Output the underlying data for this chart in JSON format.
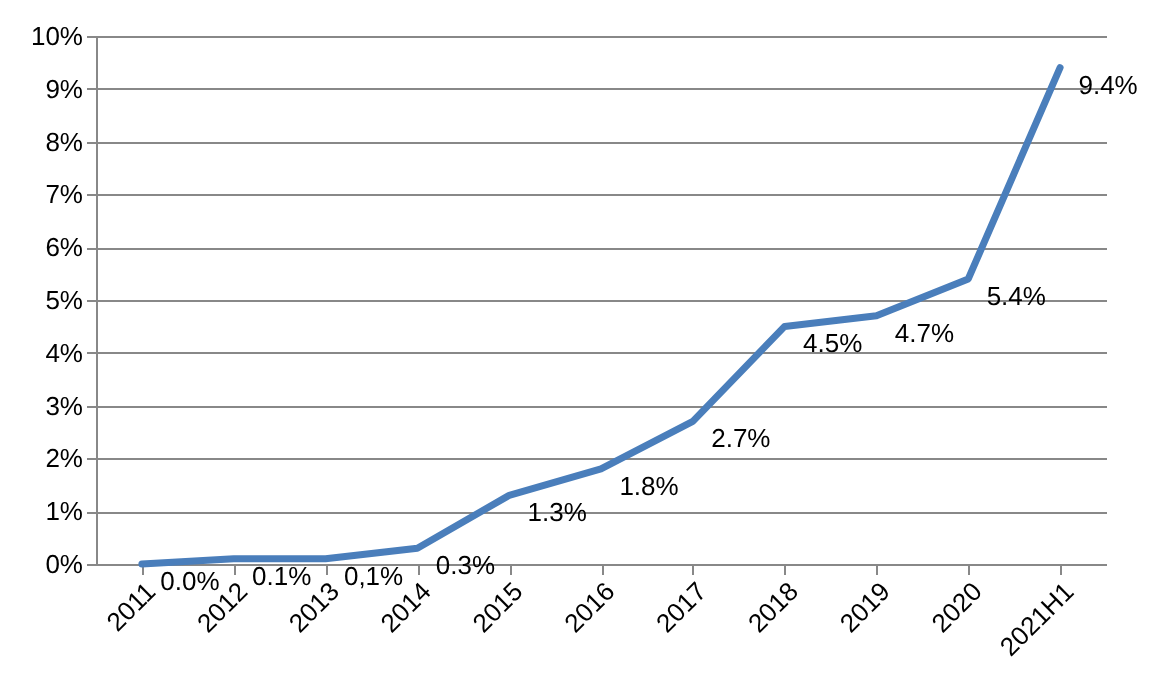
{
  "chart_data": {
    "type": "line",
    "categories": [
      "2011",
      "2012",
      "2013",
      "2014",
      "2015",
      "2016",
      "2017",
      "2018",
      "2019",
      "2020",
      "2021H1"
    ],
    "series": [
      {
        "color": "#4a7ebb",
        "values": [
          0.0,
          0.1,
          0.1,
          0.3,
          1.3,
          1.8,
          2.7,
          4.5,
          4.7,
          5.4,
          9.4
        ],
        "value_labels": [
          "0.0%",
          "0.1%",
          "0,1%",
          "0.3%",
          "1.3%",
          "1.8%",
          "2.7%",
          "4.5%",
          "4.7%",
          "5.4%",
          "9.4%"
        ]
      }
    ],
    "ylim": [
      0,
      10
    ],
    "yticks": [
      {
        "value": 0,
        "label": "0%"
      },
      {
        "value": 1,
        "label": "1%"
      },
      {
        "value": 2,
        "label": "2%"
      },
      {
        "value": 3,
        "label": "3%"
      },
      {
        "value": 4,
        "label": "4%"
      },
      {
        "value": 5,
        "label": "5%"
      },
      {
        "value": 6,
        "label": "6%"
      },
      {
        "value": 7,
        "label": "7%"
      },
      {
        "value": 8,
        "label": "8%"
      },
      {
        "value": 9,
        "label": "9%"
      },
      {
        "value": 10,
        "label": "10%"
      }
    ],
    "grid": "y",
    "marker": "none",
    "line_style": "solid"
  }
}
